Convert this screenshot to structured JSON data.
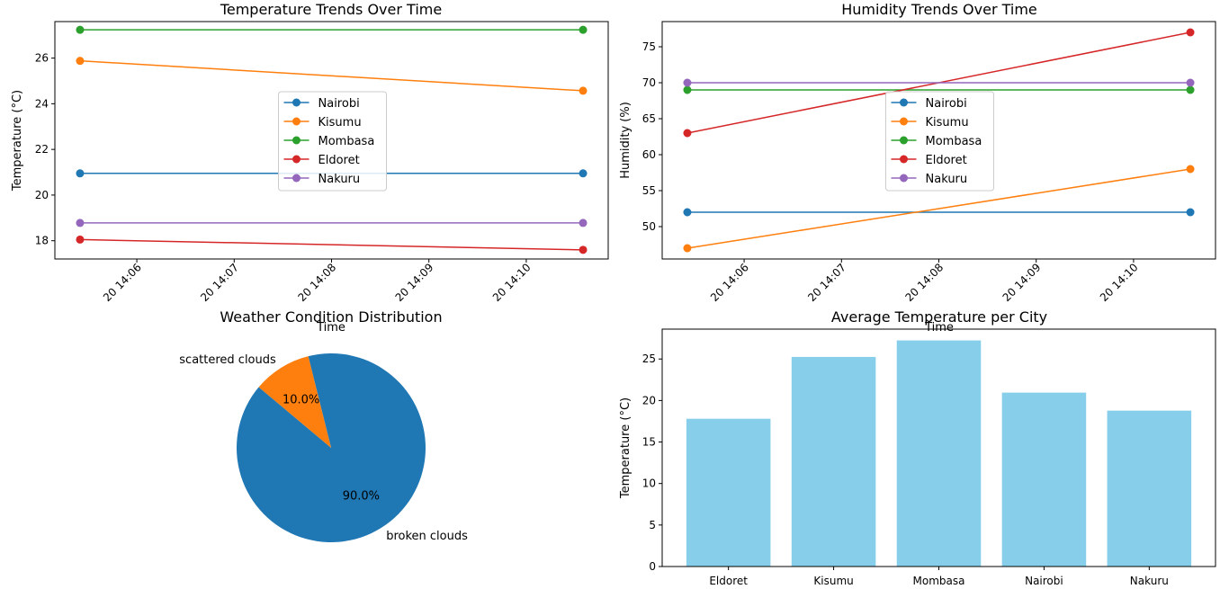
{
  "colors": {
    "Nairobi": "#1f77b4",
    "Kisumu": "#ff7f0e",
    "Mombasa": "#2ca02c",
    "Eldoret": "#d62728",
    "Nakuru": "#9467bd",
    "bar": "#87ceeb"
  },
  "chart_data": [
    {
      "id": "temp",
      "type": "line",
      "title": "Temperature Trends Over Time",
      "xlabel": "Time",
      "ylabel": "Temperature (°C)",
      "x": [
        "20 14:05:25",
        "20 14:10:35"
      ],
      "x_ticks": [
        "20 14:06",
        "20 14:07",
        "20 14:08",
        "20 14:09",
        "20 14:10"
      ],
      "ylim": [
        17.2,
        27.6
      ],
      "y_ticks": [
        18,
        20,
        22,
        24,
        26
      ],
      "legend_position": "center",
      "series": [
        {
          "name": "Nairobi",
          "values": [
            20.95,
            20.95
          ]
        },
        {
          "name": "Kisumu",
          "values": [
            25.88,
            24.57
          ]
        },
        {
          "name": "Mombasa",
          "values": [
            27.24,
            27.24
          ]
        },
        {
          "name": "Eldoret",
          "values": [
            18.05,
            17.6
          ]
        },
        {
          "name": "Nakuru",
          "values": [
            18.78,
            18.78
          ]
        }
      ]
    },
    {
      "id": "hum",
      "type": "line",
      "title": "Humidity Trends Over Time",
      "xlabel": "Time",
      "ylabel": "Humidity (%)",
      "x": [
        "20 14:05:25",
        "20 14:10:35"
      ],
      "x_ticks": [
        "20 14:06",
        "20 14:07",
        "20 14:08",
        "20 14:09",
        "20 14:10"
      ],
      "ylim": [
        45.5,
        78.5
      ],
      "y_ticks": [
        50,
        55,
        60,
        65,
        70,
        75
      ],
      "legend_position": "center",
      "series": [
        {
          "name": "Nairobi",
          "values": [
            52,
            52
          ]
        },
        {
          "name": "Kisumu",
          "values": [
            47,
            58
          ]
        },
        {
          "name": "Mombasa",
          "values": [
            69,
            69
          ]
        },
        {
          "name": "Eldoret",
          "values": [
            63,
            77
          ]
        },
        {
          "name": "Nakuru",
          "values": [
            70,
            70
          ]
        }
      ]
    },
    {
      "id": "pie",
      "type": "pie",
      "title": "Weather Condition Distribution",
      "labels": [
        "broken clouds",
        "scattered clouds"
      ],
      "values": [
        90.0,
        10.0
      ],
      "pct_labels": [
        "90.0%",
        "10.0%"
      ],
      "colors": [
        "#1f77b4",
        "#ff7f0e"
      ]
    },
    {
      "id": "bar",
      "type": "bar",
      "title": "Average Temperature per City",
      "xlabel": "",
      "ylabel": "Temperature (°C)",
      "categories": [
        "Eldoret",
        "Kisumu",
        "Mombasa",
        "Nairobi",
        "Nakuru"
      ],
      "values": [
        17.8,
        25.25,
        27.24,
        20.95,
        18.78
      ],
      "ylim": [
        0,
        28.6
      ],
      "y_ticks": [
        0,
        5,
        10,
        15,
        20,
        25
      ]
    }
  ]
}
